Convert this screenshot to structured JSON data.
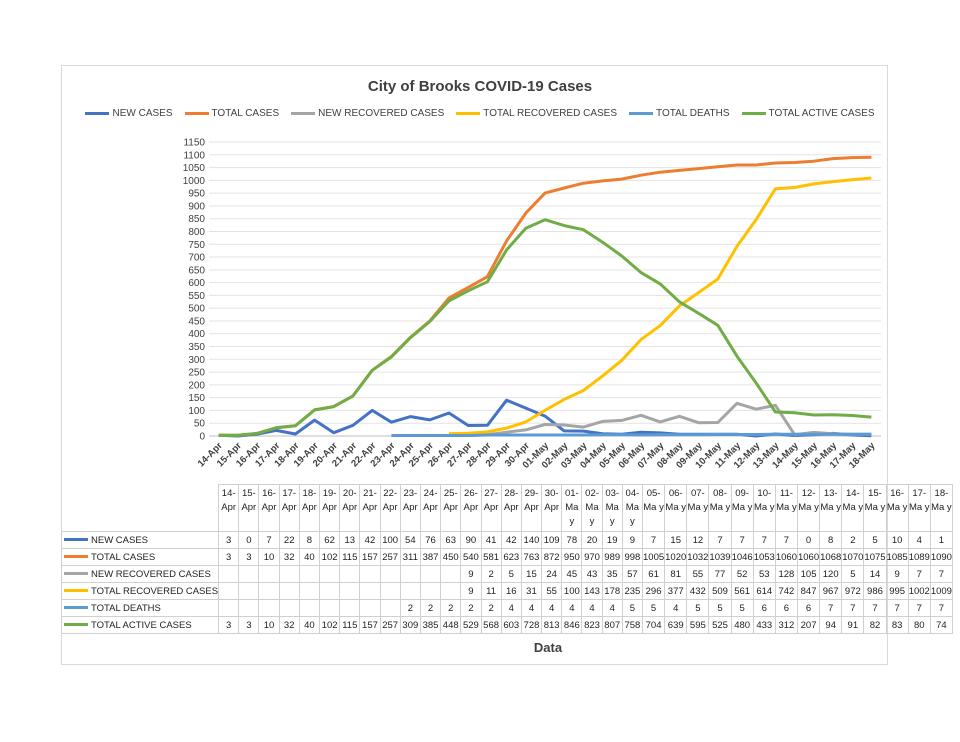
{
  "chart_data": {
    "type": "line",
    "title": "City of Brooks COVID-19 Cases",
    "xlabel": "Data",
    "ylabel": "",
    "ylim": [
      0,
      1150
    ],
    "ytick_step": 50,
    "grid": true,
    "legend_position": "top",
    "categories": [
      "14-Apr",
      "15-Apr",
      "16-Apr",
      "17-Apr",
      "18-Apr",
      "19-Apr",
      "20-Apr",
      "21-Apr",
      "22-Apr",
      "23-Apr",
      "24-Apr",
      "25-Apr",
      "26-Apr",
      "27-Apr",
      "28-Apr",
      "29-Apr",
      "30-Apr",
      "01-May",
      "02-May",
      "03-May",
      "04-May",
      "05-May",
      "06-May",
      "07-May",
      "08-May",
      "09-May",
      "10-May",
      "11-May",
      "12-May",
      "13-May",
      "14-May",
      "15-May",
      "16-May",
      "17-May",
      "18-May"
    ],
    "table_headers": [
      "14-Apr",
      "15-Apr",
      "16-Apr",
      "17-Apr",
      "18-Apr",
      "19-Apr",
      "20-Apr",
      "21-Apr",
      "22-Apr",
      "23-Apr",
      "24-Apr",
      "25-Apr",
      "26-Apr",
      "27-Apr",
      "28-Apr",
      "29-Apr",
      "30-Apr",
      "01-Ma y",
      "02-Ma y",
      "03-Ma y",
      "04-Ma y",
      "05-Ma y",
      "06-Ma y",
      "07-Ma y",
      "08-Ma y",
      "09-Ma y",
      "10-Ma y",
      "11-Ma y",
      "12-Ma y",
      "13-Ma y",
      "14-Ma y",
      "15-Ma y",
      "16-Ma y",
      "17-Ma y",
      "18-Ma y"
    ],
    "series": [
      {
        "name": "NEW CASES",
        "color": "#4472c4",
        "values": [
          3,
          0,
          7,
          22,
          8,
          62,
          13,
          42,
          100,
          54,
          76,
          63,
          90,
          41,
          42,
          140,
          109,
          78,
          20,
          19,
          9,
          7,
          15,
          12,
          7,
          7,
          7,
          7,
          0,
          8,
          2,
          5,
          10,
          4,
          1
        ]
      },
      {
        "name": "TOTAL CASES",
        "color": "#ed7d31",
        "values": [
          3,
          3,
          10,
          32,
          40,
          102,
          115,
          157,
          257,
          311,
          387,
          450,
          540,
          581,
          623,
          763,
          872,
          950,
          970,
          989,
          998,
          1005,
          1020,
          1032,
          1039,
          1046,
          1053,
          1060,
          1060,
          1068,
          1070,
          1075,
          1085,
          1089,
          1090
        ]
      },
      {
        "name": "NEW RECOVERED CASES",
        "color": "#a5a5a5",
        "values": [
          null,
          null,
          null,
          null,
          null,
          null,
          null,
          null,
          null,
          null,
          null,
          null,
          9,
          2,
          5,
          15,
          24,
          45,
          43,
          35,
          57,
          61,
          81,
          55,
          77,
          52,
          53,
          128,
          105,
          120,
          5,
          14,
          9,
          7,
          7
        ]
      },
      {
        "name": "TOTAL RECOVERED CASES",
        "color": "#ffc000",
        "values": [
          null,
          null,
          null,
          null,
          null,
          null,
          null,
          null,
          null,
          null,
          null,
          null,
          9,
          11,
          16,
          31,
          55,
          100,
          143,
          178,
          235,
          296,
          377,
          432,
          509,
          561,
          614,
          742,
          847,
          967,
          972,
          986,
          995,
          1002,
          1009
        ]
      },
      {
        "name": "TOTAL DEATHS",
        "color": "#5b9bd5",
        "values": [
          null,
          null,
          null,
          null,
          null,
          null,
          null,
          null,
          null,
          2,
          2,
          2,
          2,
          2,
          4,
          4,
          4,
          4,
          4,
          4,
          5,
          5,
          4,
          5,
          5,
          5,
          6,
          6,
          6,
          7,
          7,
          7,
          7,
          7,
          7
        ]
      },
      {
        "name": "TOTAL ACTIVE CASES",
        "color": "#70ad47",
        "values": [
          3,
          3,
          10,
          32,
          40,
          102,
          115,
          157,
          257,
          309,
          385,
          448,
          529,
          568,
          603,
          728,
          813,
          846,
          823,
          807,
          758,
          704,
          639,
          595,
          525,
          480,
          433,
          312,
          207,
          94,
          91,
          82,
          83,
          80,
          74
        ]
      }
    ]
  }
}
